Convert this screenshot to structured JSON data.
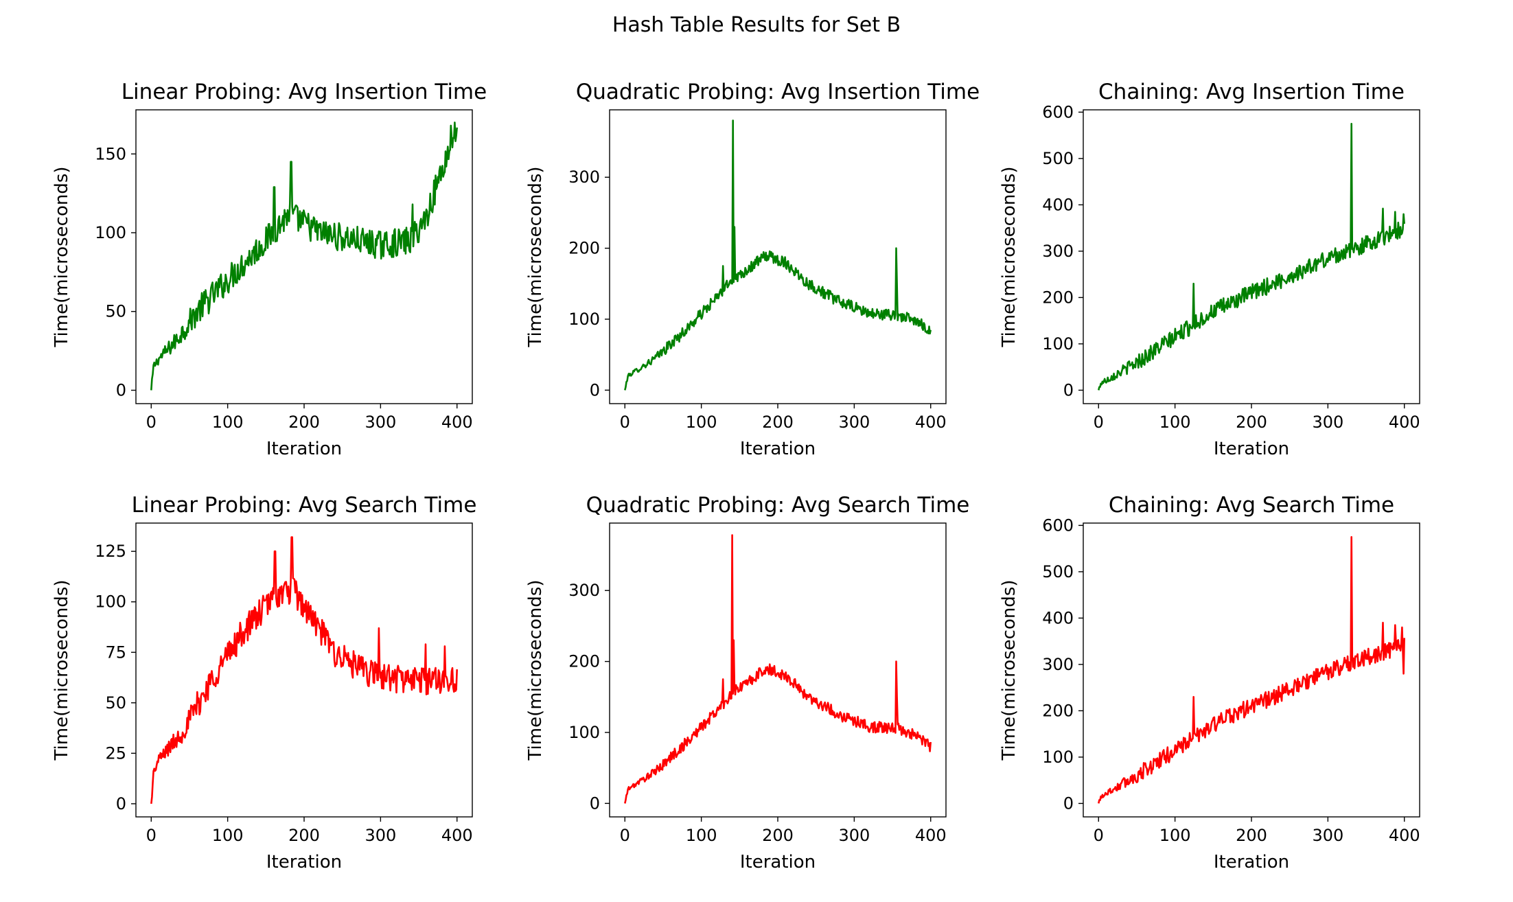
{
  "figure": {
    "title": "Hash Table Results for Set B"
  },
  "chart_data": [
    {
      "type": "line",
      "title": "Linear Probing: Avg Insertion Time",
      "xlabel": "Iteration",
      "ylabel": "Time(microseconds)",
      "xlim": [
        -20,
        420
      ],
      "ylim": [
        -8.5,
        178
      ],
      "xticks": [
        0,
        100,
        200,
        300,
        400
      ],
      "yticks": [
        0,
        50,
        100,
        150
      ],
      "color": "#008000",
      "series": [
        {
          "kind": "insert",
          "x_start": 0,
          "x_end": 400,
          "points": 400,
          "trend": [
            [
              0,
              0
            ],
            [
              3,
              15
            ],
            [
              10,
              20
            ],
            [
              30,
              30
            ],
            [
              60,
              50
            ],
            [
              100,
              70
            ],
            [
              150,
              95
            ],
            [
              180,
              112
            ],
            [
              220,
              100
            ],
            [
              260,
              96
            ],
            [
              300,
              92
            ],
            [
              340,
              95
            ],
            [
              360,
              110
            ],
            [
              380,
              140
            ],
            [
              400,
              165
            ]
          ],
          "noise": 9,
          "spikes": [
            [
              183,
              145
            ],
            [
              161,
              129
            ],
            [
              342,
              118
            ],
            [
              392,
              168
            ],
            [
              397,
              170
            ]
          ]
        }
      ]
    },
    {
      "type": "line",
      "title": "Quadratic Probing: Avg Insertion Time",
      "xlabel": "Iteration",
      "ylabel": "Time(microseconds)",
      "xlim": [
        -20,
        420
      ],
      "ylim": [
        -19,
        395
      ],
      "xticks": [
        0,
        100,
        200,
        300,
        400
      ],
      "yticks": [
        0,
        100,
        200,
        300
      ],
      "color": "#008000",
      "series": [
        {
          "kind": "insert",
          "x_start": 0,
          "x_end": 400,
          "points": 400,
          "trend": [
            [
              0,
              0
            ],
            [
              4,
              20
            ],
            [
              40,
              45
            ],
            [
              80,
              85
            ],
            [
              120,
              130
            ],
            [
              140,
              155
            ],
            [
              160,
              170
            ],
            [
              185,
              190
            ],
            [
              210,
              180
            ],
            [
              240,
              150
            ],
            [
              280,
              125
            ],
            [
              320,
              108
            ],
            [
              360,
              105
            ],
            [
              390,
              92
            ],
            [
              400,
              82
            ]
          ],
          "noise": 8,
          "spikes": [
            [
              141,
              380
            ],
            [
              143,
              230
            ],
            [
              128,
              175
            ],
            [
              355,
              200
            ],
            [
              356,
              150
            ]
          ]
        }
      ]
    },
    {
      "type": "line",
      "title": "Chaining: Avg Insertion Time",
      "xlabel": "Iteration",
      "ylabel": "Time(microseconds)",
      "xlim": [
        -20,
        420
      ],
      "ylim": [
        -29,
        605
      ],
      "xticks": [
        0,
        100,
        200,
        300,
        400
      ],
      "yticks": [
        0,
        100,
        200,
        300,
        400,
        500,
        600
      ],
      "color": "#008000",
      "series": [
        {
          "kind": "insert",
          "x_start": 0,
          "x_end": 400,
          "points": 400,
          "trend": [
            [
              0,
              0
            ],
            [
              3,
              15
            ],
            [
              50,
              60
            ],
            [
              100,
              115
            ],
            [
              150,
              170
            ],
            [
              200,
              210
            ],
            [
              250,
              245
            ],
            [
              300,
              285
            ],
            [
              350,
              315
            ],
            [
              400,
              350
            ]
          ],
          "noise": 18,
          "spikes": [
            [
              331,
              575
            ],
            [
              124,
              230
            ],
            [
              372,
              392
            ],
            [
              388,
              385
            ],
            [
              399,
              380
            ]
          ]
        }
      ]
    },
    {
      "type": "line",
      "title": "Linear Probing: Avg Search Time",
      "xlabel": "Iteration",
      "ylabel": "Time(microseconds)",
      "xlim": [
        -20,
        420
      ],
      "ylim": [
        -6.5,
        139
      ],
      "xticks": [
        0,
        100,
        200,
        300,
        400
      ],
      "yticks": [
        0,
        25,
        50,
        75,
        100,
        125
      ],
      "color": "#ff0000",
      "series": [
        {
          "kind": "search",
          "x_start": 0,
          "x_end": 400,
          "points": 400,
          "trend": [
            [
              0,
              0
            ],
            [
              3,
              15
            ],
            [
              10,
              22
            ],
            [
              40,
              35
            ],
            [
              80,
              62
            ],
            [
              120,
              85
            ],
            [
              160,
              102
            ],
            [
              185,
              106
            ],
            [
              210,
              92
            ],
            [
              240,
              75
            ],
            [
              280,
              65
            ],
            [
              320,
              62
            ],
            [
              360,
              61
            ],
            [
              400,
              62
            ]
          ],
          "noise": 7,
          "spikes": [
            [
              184,
              132
            ],
            [
              162,
              125
            ],
            [
              359,
              79
            ],
            [
              298,
              87
            ],
            [
              384,
              78
            ]
          ]
        }
      ]
    },
    {
      "type": "line",
      "title": "Quadratic Probing: Avg Search Time",
      "xlabel": "Iteration",
      "ylabel": "Time(microseconds)",
      "xlim": [
        -20,
        420
      ],
      "ylim": [
        -19,
        395
      ],
      "xticks": [
        0,
        100,
        200,
        300,
        400
      ],
      "yticks": [
        0,
        100,
        200,
        300
      ],
      "color": "#ff0000",
      "series": [
        {
          "kind": "search",
          "x_start": 0,
          "x_end": 400,
          "points": 400,
          "trend": [
            [
              0,
              0
            ],
            [
              4,
              20
            ],
            [
              40,
              45
            ],
            [
              80,
              85
            ],
            [
              120,
              130
            ],
            [
              140,
              155
            ],
            [
              160,
              170
            ],
            [
              185,
              190
            ],
            [
              210,
              180
            ],
            [
              240,
              150
            ],
            [
              280,
              125
            ],
            [
              320,
              108
            ],
            [
              360,
              105
            ],
            [
              390,
              90
            ],
            [
              400,
              80
            ]
          ],
          "noise": 8,
          "spikes": [
            [
              140,
              378
            ],
            [
              142,
              230
            ],
            [
              128,
              175
            ],
            [
              355,
              200
            ],
            [
              356,
              150
            ]
          ]
        }
      ]
    },
    {
      "type": "line",
      "title": "Chaining: Avg Search Time",
      "xlabel": "Iteration",
      "ylabel": "Time(microseconds)",
      "xlim": [
        -20,
        420
      ],
      "ylim": [
        -29,
        605
      ],
      "xticks": [
        0,
        100,
        200,
        300,
        400
      ],
      "yticks": [
        0,
        100,
        200,
        300,
        400,
        500,
        600
      ],
      "color": "#ff0000",
      "series": [
        {
          "kind": "search",
          "x_start": 0,
          "x_end": 400,
          "points": 400,
          "trend": [
            [
              0,
              0
            ],
            [
              3,
              15
            ],
            [
              50,
              60
            ],
            [
              100,
              115
            ],
            [
              150,
              170
            ],
            [
              200,
              210
            ],
            [
              250,
              245
            ],
            [
              300,
              285
            ],
            [
              350,
              315
            ],
            [
              400,
              340
            ]
          ],
          "noise": 18,
          "spikes": [
            [
              331,
              575
            ],
            [
              124,
              230
            ],
            [
              372,
              390
            ],
            [
              388,
              385
            ],
            [
              397,
              380
            ],
            [
              399,
              280
            ]
          ]
        }
      ]
    }
  ]
}
